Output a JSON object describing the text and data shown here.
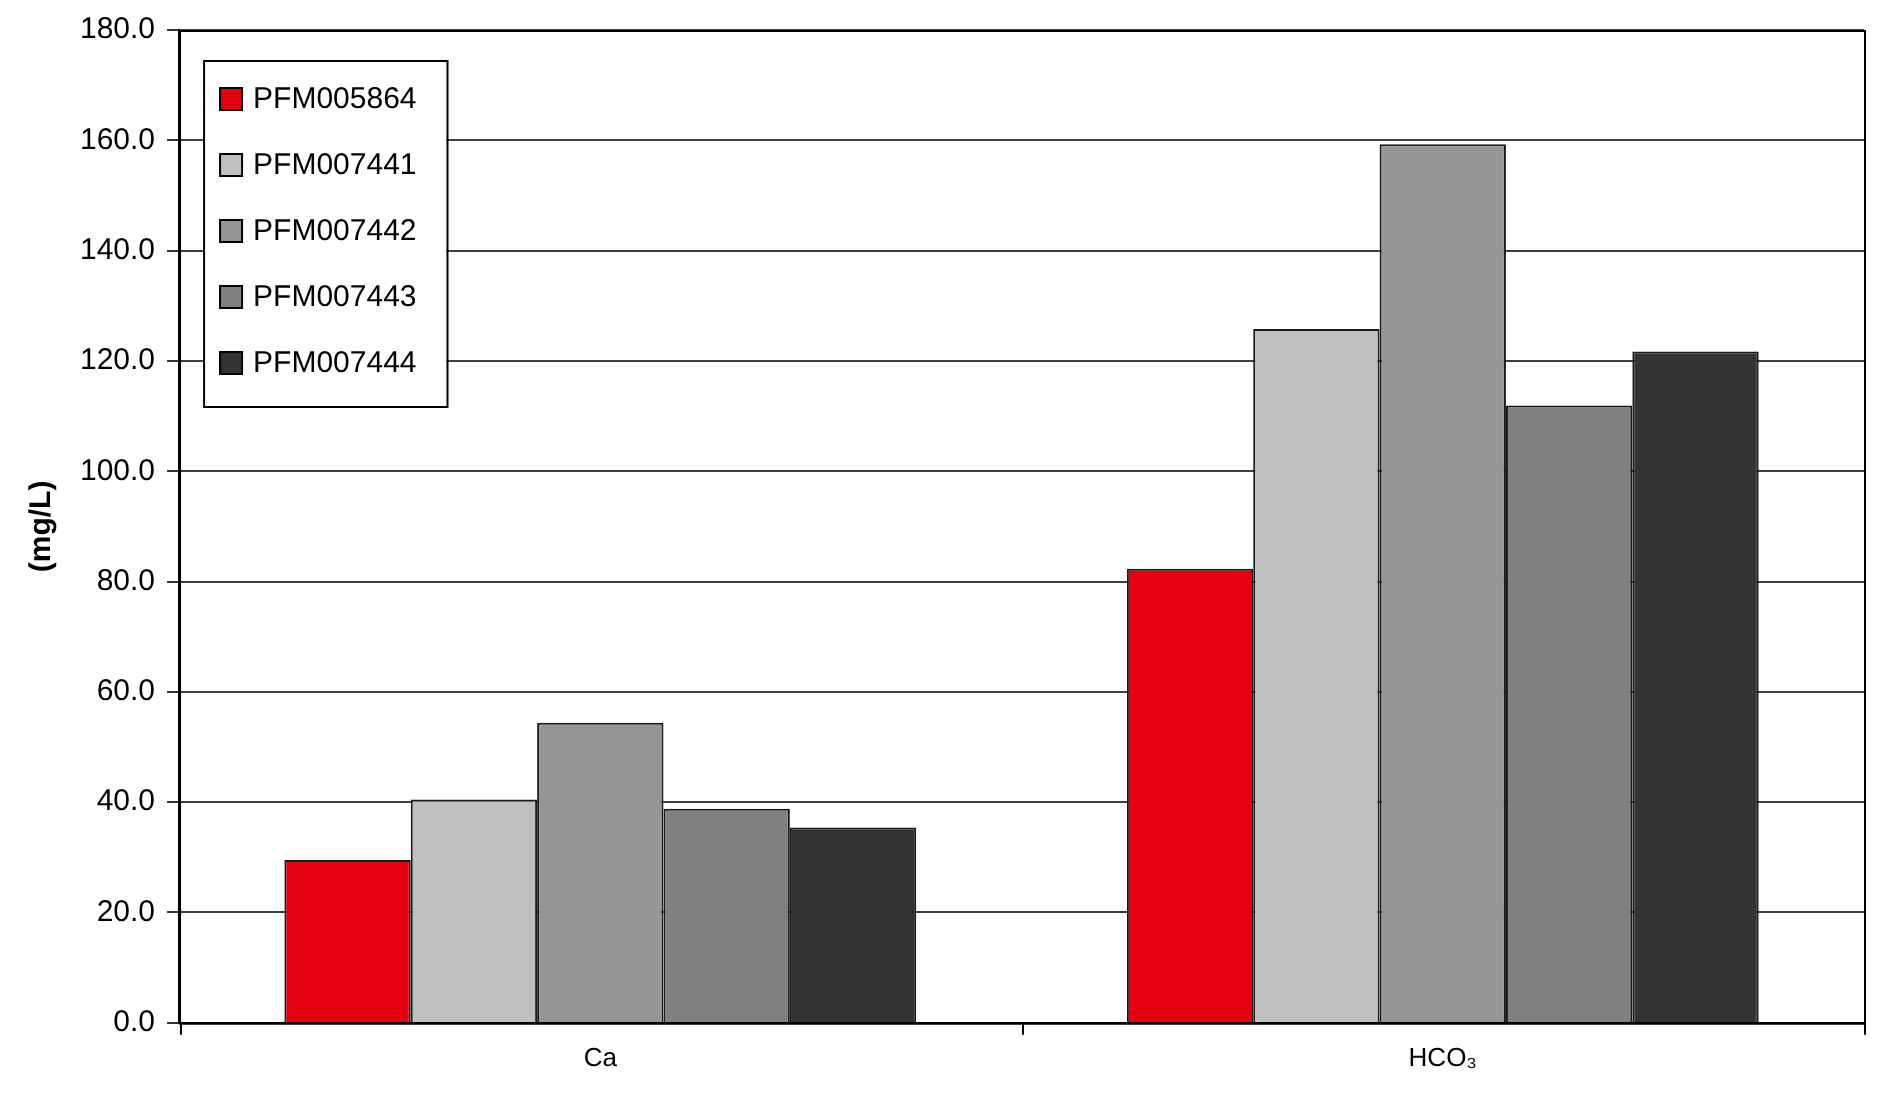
{
  "chart_data": {
    "type": "bar",
    "ylabel": "(mg/L)",
    "categories": [
      "Ca",
      "HCO₃"
    ],
    "series": [
      {
        "name": "PFM005864",
        "color": "#e3000f",
        "values": [
          29.5,
          82.3
        ]
      },
      {
        "name": "PFM007441",
        "color": "#bfbfbf",
        "values": [
          40.5,
          125.8
        ]
      },
      {
        "name": "PFM007442",
        "color": "#969696",
        "values": [
          54.4,
          159.3
        ]
      },
      {
        "name": "PFM007443",
        "color": "#808080",
        "values": [
          38.8,
          111.9
        ]
      },
      {
        "name": "PFM007444",
        "color": "#333333",
        "values": [
          35.4,
          121.7
        ]
      }
    ],
    "ylim": [
      0,
      180
    ],
    "yticks": [
      {
        "value": 0,
        "label": "0.0"
      },
      {
        "value": 20,
        "label": "20.0"
      },
      {
        "value": 40,
        "label": "40.0"
      },
      {
        "value": 60,
        "label": "60.0"
      },
      {
        "value": 80,
        "label": "80.0"
      },
      {
        "value": 100,
        "label": "100.0"
      },
      {
        "value": 120,
        "label": "120.0"
      },
      {
        "value": 140,
        "label": "140.0"
      },
      {
        "value": 160,
        "label": "160.0"
      },
      {
        "value": 180,
        "label": "180.0"
      }
    ],
    "grid": "y",
    "legend": "top left"
  }
}
